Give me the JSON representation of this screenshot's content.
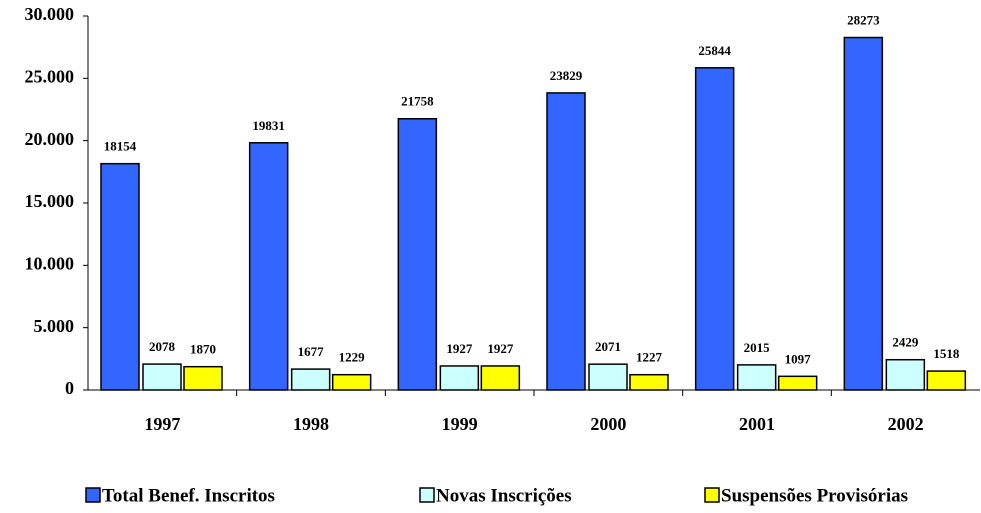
{
  "chart_data": {
    "type": "bar",
    "categories": [
      "1997",
      "1998",
      "1999",
      "2000",
      "2001",
      "2002"
    ],
    "series": [
      {
        "name": "Total Benef. Inscritos",
        "color": "#3366ff",
        "values": [
          18154,
          19831,
          21758,
          23829,
          25844,
          28273
        ]
      },
      {
        "name": "Novas Inscrições",
        "color": "#ccffff",
        "values": [
          2078,
          1677,
          1927,
          2071,
          2015,
          2429
        ]
      },
      {
        "name": "Suspensões Provisórias",
        "color": "#ffff00",
        "values": [
          1870,
          1229,
          1927,
          1227,
          1097,
          1518
        ]
      }
    ],
    "ylim": [
      0,
      30000
    ],
    "yticks": [
      0,
      {
        "value": 5000,
        "label": "5.000"
      },
      {
        "value": 10000,
        "label": "10.000"
      },
      {
        "value": 15000,
        "label": "15.000"
      },
      {
        "value": 20000,
        "label": "20.000"
      },
      {
        "value": 25000,
        "label": "25.000"
      },
      {
        "value": 30000,
        "label": "30.000"
      }
    ],
    "legend": "bottom"
  }
}
